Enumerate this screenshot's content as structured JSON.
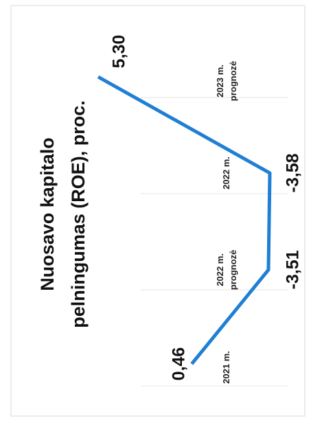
{
  "chart_data": {
    "type": "line",
    "title_lines": [
      "Nuosavo kapitalo",
      "pelningumas (ROE), proc."
    ],
    "categories": [
      [
        "2021 m."
      ],
      [
        "2022 m.",
        "prognozė"
      ],
      [
        "2022 m."
      ],
      [
        "2023 m.",
        "prognozė"
      ]
    ],
    "values": [
      0.46,
      -3.51,
      -3.58,
      5.3
    ],
    "value_labels": [
      "0,46",
      "-3,51",
      "-3,58",
      "5,30"
    ],
    "ylim": [
      -4,
      6
    ],
    "orientation": "rotated-90",
    "grid": true,
    "line_color": "#1f7fd4"
  }
}
